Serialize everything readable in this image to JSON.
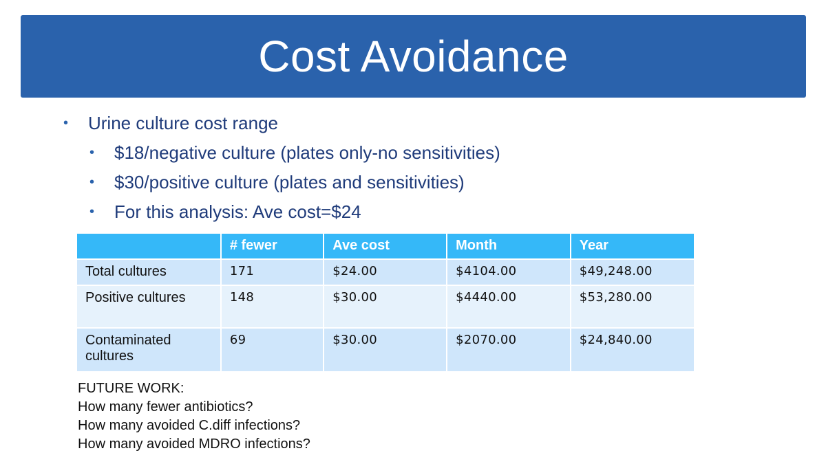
{
  "title": "Cost Avoidance",
  "bullets": {
    "main": "Urine culture cost range",
    "sub1": "$18/negative culture (plates only-no sensitivities)",
    "sub2": "$30/positive culture (plates and sensitivities)",
    "sub3": "For this analysis: Ave cost=$24",
    "glyph": "•"
  },
  "table": {
    "headers": [
      "",
      "# fewer",
      "Ave cost",
      "Month",
      "Year"
    ],
    "rows": [
      [
        "Total cultures",
        "171",
        "$24.00",
        "$4104.00",
        "$49,248.00"
      ],
      [
        "Positive cultures",
        "148",
        "$30.00",
        "$4440.00",
        "$53,280.00"
      ],
      [
        "Contaminated cultures",
        "69",
        "$30.00",
        "$2070.00",
        "$24,840.00"
      ]
    ]
  },
  "future_work": {
    "heading": "FUTURE WORK:",
    "lines": [
      "How many fewer antibiotics?",
      "How many avoided C.diff infections?",
      "How many avoided MDRO infections?"
    ]
  },
  "colors": {
    "title_bar": "#2a62ac",
    "header_row": "#35b8f8",
    "row_dark": "#cfe6fb",
    "row_light": "#e6f2fc",
    "bullet_text": "#1f3b7a"
  }
}
